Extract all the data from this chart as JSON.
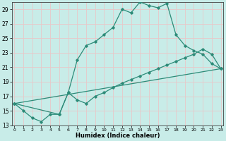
{
  "xlabel": "Humidex (Indice chaleur)",
  "line_color": "#2d8b78",
  "bg_color": "#c8ece8",
  "grid_major_color": "#e8c8c8",
  "grid_minor_color": "#b0dcd8",
  "line1_x": [
    0,
    1,
    2,
    3,
    4,
    5,
    6,
    7,
    8,
    9,
    10,
    11,
    12,
    13,
    14,
    15,
    16,
    17,
    18,
    19,
    20,
    21,
    22,
    23
  ],
  "line1_y": [
    16.0,
    15.0,
    14.0,
    13.5,
    14.5,
    14.5,
    17.5,
    22.0,
    24.0,
    24.5,
    25.5,
    26.5,
    29.0,
    28.5,
    30.0,
    29.5,
    29.2,
    29.8,
    25.5,
    24.0,
    23.3,
    22.8,
    21.5,
    20.8
  ],
  "line2_x": [
    0,
    5,
    6,
    7,
    8,
    9,
    10,
    11,
    12,
    13,
    14,
    15,
    16,
    17,
    18,
    19,
    20,
    21,
    22,
    23
  ],
  "line2_y": [
    16.0,
    14.5,
    17.5,
    16.5,
    16.0,
    17.0,
    17.5,
    18.2,
    18.8,
    19.3,
    19.8,
    20.3,
    20.8,
    21.3,
    21.8,
    22.3,
    22.8,
    23.5,
    22.8,
    20.8
  ],
  "line3_x": [
    0,
    23
  ],
  "line3_y": [
    16.0,
    20.8
  ],
  "ylim": [
    13,
    30
  ],
  "xlim": [
    -0.3,
    23.3
  ],
  "yticks": [
    13,
    15,
    17,
    19,
    21,
    23,
    25,
    27,
    29
  ],
  "xticks": [
    0,
    1,
    2,
    3,
    4,
    5,
    6,
    7,
    8,
    9,
    10,
    11,
    12,
    13,
    14,
    15,
    16,
    17,
    18,
    19,
    20,
    21,
    22,
    23
  ]
}
